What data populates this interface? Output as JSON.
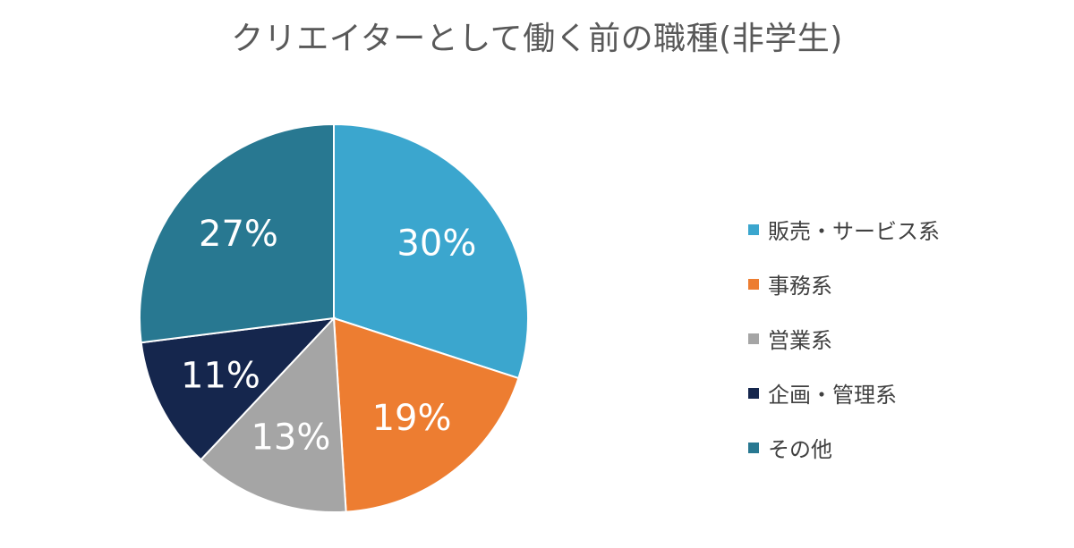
{
  "chart_data": {
    "type": "pie",
    "title": "クリエイターとして働く前の職種(非学生)",
    "categories": [
      "販売・サービス系",
      "事務系",
      "営業系",
      "企画・管理系",
      "その他"
    ],
    "values": [
      30,
      19,
      13,
      11,
      27
    ],
    "labels": [
      "30%",
      "19%",
      "13%",
      "11%",
      "27%"
    ],
    "colors": [
      "#3BA6CE",
      "#ED7D31",
      "#A5A5A5",
      "#15264D",
      "#287891"
    ],
    "label_color": "#FFFFFF",
    "legend_position": "right",
    "start_angle": "top",
    "direction": "clockwise"
  }
}
